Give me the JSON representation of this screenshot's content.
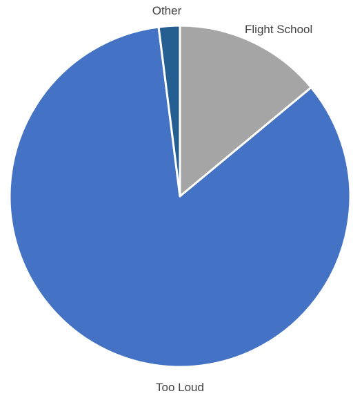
{
  "chart_data": {
    "type": "pie",
    "title": "",
    "start_angle_deg": 0,
    "direction": "clockwise",
    "slices": [
      {
        "label": "Flight School",
        "value": 14,
        "color": "#A5A5A5"
      },
      {
        "label": "Too Loud",
        "value": 84,
        "color": "#4472C4"
      },
      {
        "label": "Other",
        "value": 2,
        "color": "#255E91"
      }
    ],
    "legend": "none",
    "data_labels": "category names outside slices"
  }
}
